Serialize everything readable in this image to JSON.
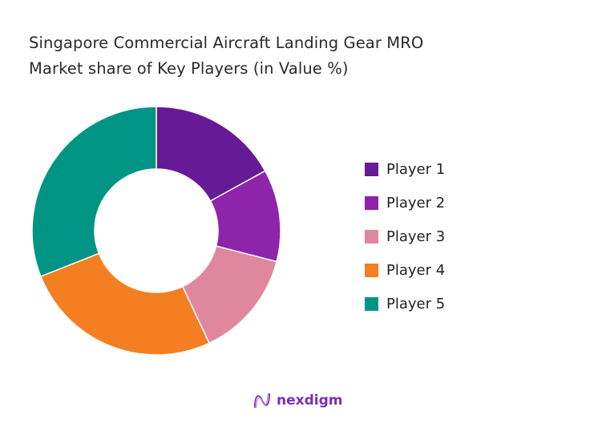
{
  "chart_data": {
    "type": "pie",
    "donut": true,
    "title": "Singapore Commercial Aircraft Landing Gear MRO Market share of Key Players (in Value %)",
    "title_lines": [
      "Singapore Commercial Aircraft Landing Gear MRO",
      "Market share of Key Players (in Value %)"
    ],
    "categories": [
      "Player 1",
      "Player 2",
      "Player 3",
      "Player 4",
      "Player 5"
    ],
    "values": [
      17,
      12,
      14,
      26,
      31
    ],
    "colors": [
      "#661a96",
      "#8e24aa",
      "#e0879f",
      "#f47f22",
      "#009485"
    ],
    "legend_position": "right",
    "start_angle": "top",
    "direction": "clockwise"
  },
  "brand": {
    "name": "nexdigm",
    "color": "#7b2cbf"
  }
}
